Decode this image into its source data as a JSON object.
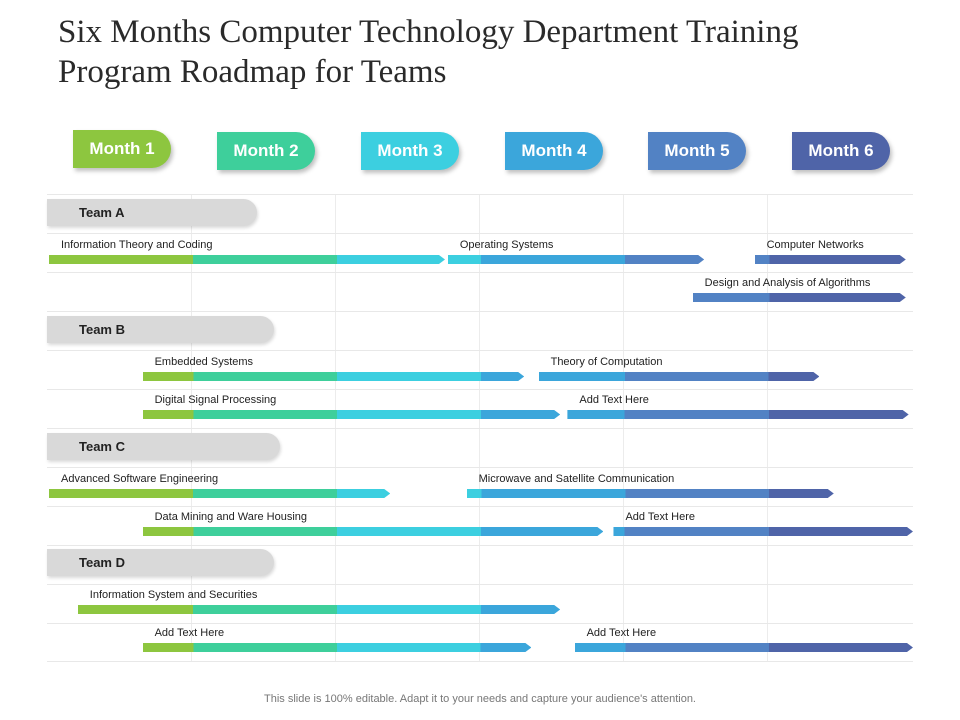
{
  "title": "Six Months Computer Technology Department Training Program Roadmap for Teams",
  "months": [
    {
      "label": "Month 1",
      "color": "#8dc63f"
    },
    {
      "label": "Month 2",
      "color": "#3ecf9b"
    },
    {
      "label": "Month 3",
      "color": "#3ccfe0"
    },
    {
      "label": "Month 4",
      "color": "#3ba6db"
    },
    {
      "label": "Month 5",
      "color": "#5282c4"
    },
    {
      "label": "Month 6",
      "color": "#4f64a8"
    }
  ],
  "teams": [
    {
      "name": "Team  A",
      "rows": [
        {
          "tasks": [
            {
              "label": "Information Theory and Coding",
              "start": 0.0,
              "end": 2.75
            },
            {
              "label": "Operating Systems",
              "start": 2.77,
              "end": 4.55
            },
            {
              "label": "Computer Networks",
              "start": 4.9,
              "end": 5.95
            }
          ]
        },
        {
          "tasks": [
            {
              "label": "Design and Analysis of Algorithms",
              "start": 4.47,
              "end": 5.95
            }
          ]
        }
      ]
    },
    {
      "name": "Team  B",
      "rows": [
        {
          "tasks": [
            {
              "label": "Embedded Systems",
              "start": 0.65,
              "end": 3.3
            },
            {
              "label": "Theory of Computation",
              "start": 3.4,
              "end": 5.35
            }
          ]
        },
        {
          "tasks": [
            {
              "label": "Digital Signal Processing",
              "start": 0.65,
              "end": 3.55
            },
            {
              "label": "Add Text Here",
              "start": 3.6,
              "end": 5.97
            }
          ]
        }
      ]
    },
    {
      "name": "Team  C",
      "rows": [
        {
          "tasks": [
            {
              "label": "Advanced Software Engineering",
              "start": 0.0,
              "end": 2.37
            },
            {
              "label": "Microwave and Satellite Communication",
              "start": 2.9,
              "end": 5.45
            }
          ]
        },
        {
          "tasks": [
            {
              "label": "Data Mining and Ware Housing",
              "start": 0.65,
              "end": 3.85
            },
            {
              "label": "Add Text Here",
              "start": 3.92,
              "end": 6.0
            }
          ]
        }
      ]
    },
    {
      "name": "Team  D",
      "rows": [
        {
          "tasks": [
            {
              "label": "Information System and Securities",
              "start": 0.2,
              "end": 3.55
            }
          ]
        },
        {
          "tasks": [
            {
              "label": "Add Text Here",
              "start": 0.65,
              "end": 3.35
            },
            {
              "label": "Add Text Here",
              "start": 3.65,
              "end": 6.0
            }
          ]
        }
      ]
    }
  ],
  "footer": "This slide is 100% editable. Adapt it to your needs and capture your audience's attention."
}
